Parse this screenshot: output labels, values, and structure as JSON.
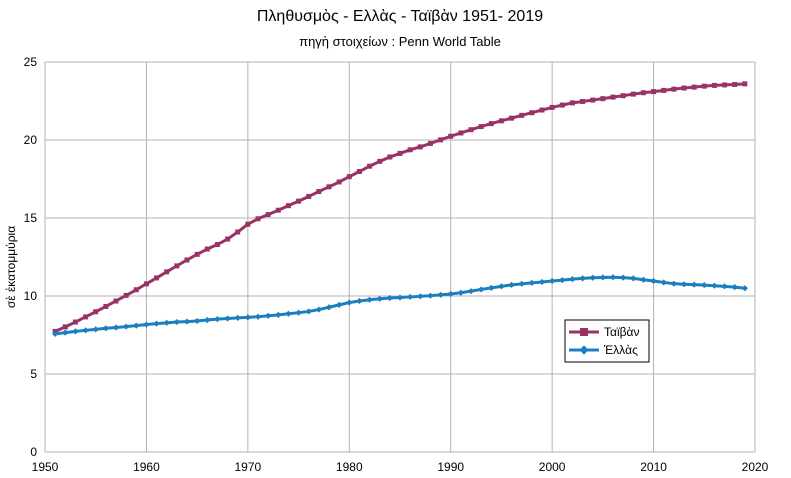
{
  "chart_data": {
    "type": "line",
    "title": "Πληθυσμὸς  -   Ελλὰς - Ταϊβὰν  1951- 2019",
    "subtitle": "πηγὴ στοιχείων :  Penn World Table",
    "xlabel": "",
    "ylabel": "σὲ ἑκατομμύρια",
    "xlim": [
      1950,
      2020
    ],
    "ylim": [
      0,
      25
    ],
    "xticks": [
      1950,
      1960,
      1970,
      1980,
      1990,
      2000,
      2010,
      2020
    ],
    "yticks": [
      0,
      5,
      10,
      15,
      20,
      25
    ],
    "grid": true,
    "legend_position": "right",
    "x": [
      1951,
      1952,
      1953,
      1954,
      1955,
      1956,
      1957,
      1958,
      1959,
      1960,
      1961,
      1962,
      1963,
      1964,
      1965,
      1966,
      1967,
      1968,
      1969,
      1970,
      1971,
      1972,
      1973,
      1974,
      1975,
      1976,
      1977,
      1978,
      1979,
      1980,
      1981,
      1982,
      1983,
      1984,
      1985,
      1986,
      1987,
      1988,
      1989,
      1990,
      1991,
      1992,
      1993,
      1994,
      1995,
      1996,
      1997,
      1998,
      1999,
      2000,
      2001,
      2002,
      2003,
      2004,
      2005,
      2006,
      2007,
      2008,
      2009,
      2010,
      2011,
      2012,
      2013,
      2014,
      2015,
      2016,
      2017,
      2018,
      2019
    ],
    "series": [
      {
        "name": "Ταϊβὰν",
        "color": "#993366",
        "marker": "square",
        "values": [
          7.73,
          8.02,
          8.33,
          8.66,
          8.99,
          9.33,
          9.68,
          10.04,
          10.4,
          10.78,
          11.16,
          11.55,
          11.93,
          12.31,
          12.67,
          13.01,
          13.3,
          13.65,
          14.1,
          14.6,
          14.95,
          15.22,
          15.5,
          15.79,
          16.08,
          16.38,
          16.7,
          17.0,
          17.31,
          17.65,
          17.98,
          18.32,
          18.63,
          18.91,
          19.14,
          19.37,
          19.56,
          19.78,
          20.01,
          20.24,
          20.45,
          20.66,
          20.86,
          21.05,
          21.23,
          21.4,
          21.58,
          21.75,
          21.92,
          22.09,
          22.24,
          22.38,
          22.47,
          22.56,
          22.65,
          22.75,
          22.84,
          22.94,
          23.03,
          23.1,
          23.18,
          23.26,
          23.33,
          23.39,
          23.45,
          23.5,
          23.53,
          23.56,
          23.6
        ]
      },
      {
        "name": "Ἑλλὰς",
        "color": "#1b7fbf",
        "marker": "diamond",
        "values": [
          7.57,
          7.65,
          7.73,
          7.8,
          7.86,
          7.93,
          7.98,
          8.04,
          8.1,
          8.17,
          8.23,
          8.28,
          8.33,
          8.36,
          8.4,
          8.46,
          8.52,
          8.56,
          8.6,
          8.63,
          8.67,
          8.73,
          8.79,
          8.86,
          8.93,
          9.01,
          9.13,
          9.28,
          9.43,
          9.58,
          9.68,
          9.76,
          9.82,
          9.87,
          9.9,
          9.94,
          9.98,
          10.02,
          10.07,
          10.13,
          10.21,
          10.31,
          10.42,
          10.52,
          10.62,
          10.71,
          10.78,
          10.84,
          10.9,
          10.96,
          11.02,
          11.08,
          11.13,
          11.17,
          11.19,
          11.2,
          11.18,
          11.13,
          11.04,
          10.96,
          10.87,
          10.79,
          10.75,
          10.73,
          10.7,
          10.66,
          10.62,
          10.57,
          10.5
        ]
      }
    ]
  }
}
